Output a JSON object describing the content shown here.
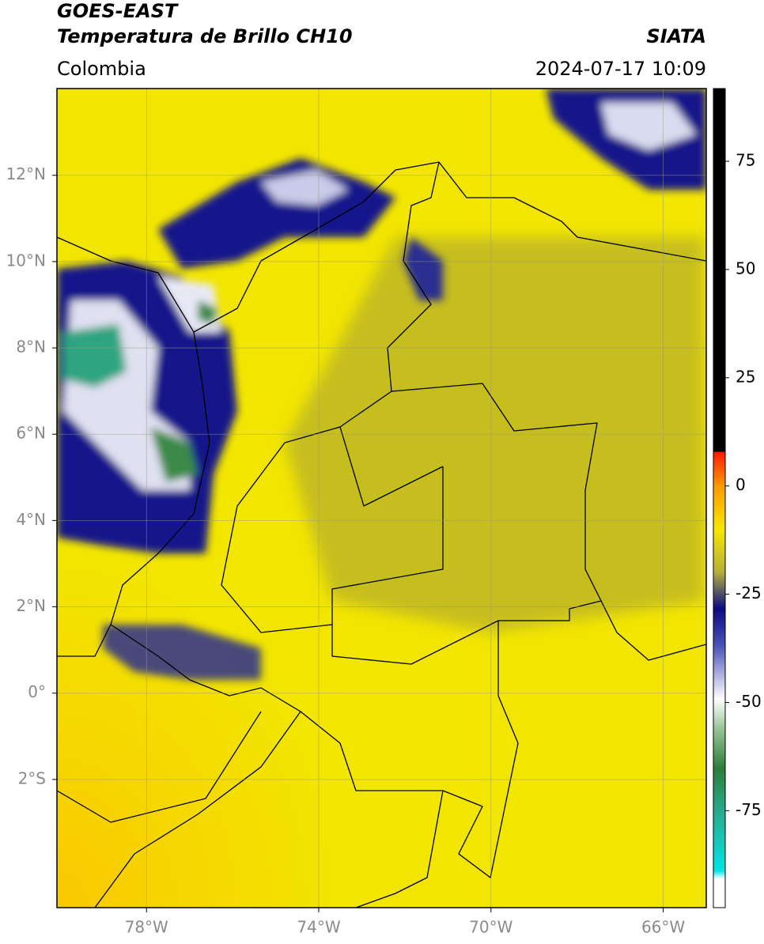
{
  "header": {
    "satellite": "GOES-EAST",
    "product": "Temperatura de Brillo CH10",
    "region": "Colombia",
    "agency": "SIATA",
    "datetime": "2024-07-17 10:09"
  },
  "map": {
    "xlim": [
      -80.08,
      -65.0
    ],
    "ylim": [
      -4.97,
      14.01
    ],
    "xticks": [
      {
        "value": -78,
        "label": "78°W"
      },
      {
        "value": -74,
        "label": "74°W"
      },
      {
        "value": -70,
        "label": "70°W"
      },
      {
        "value": -66,
        "label": "66°W"
      }
    ],
    "yticks": [
      {
        "value": 12,
        "label": "12°N"
      },
      {
        "value": 10,
        "label": "10°N"
      },
      {
        "value": 8,
        "label": "8°N"
      },
      {
        "value": 6,
        "label": "6°N"
      },
      {
        "value": 4,
        "label": "4°N"
      },
      {
        "value": 2,
        "label": "2°N"
      },
      {
        "value": 0,
        "label": "0°"
      },
      {
        "value": -2,
        "label": "2°S"
      }
    ],
    "grid": true
  },
  "colorbar": {
    "lim": [
      -97.4,
      91.8
    ],
    "ticks": [
      75,
      50,
      25,
      0,
      -25,
      -50,
      -75
    ]
  }
}
